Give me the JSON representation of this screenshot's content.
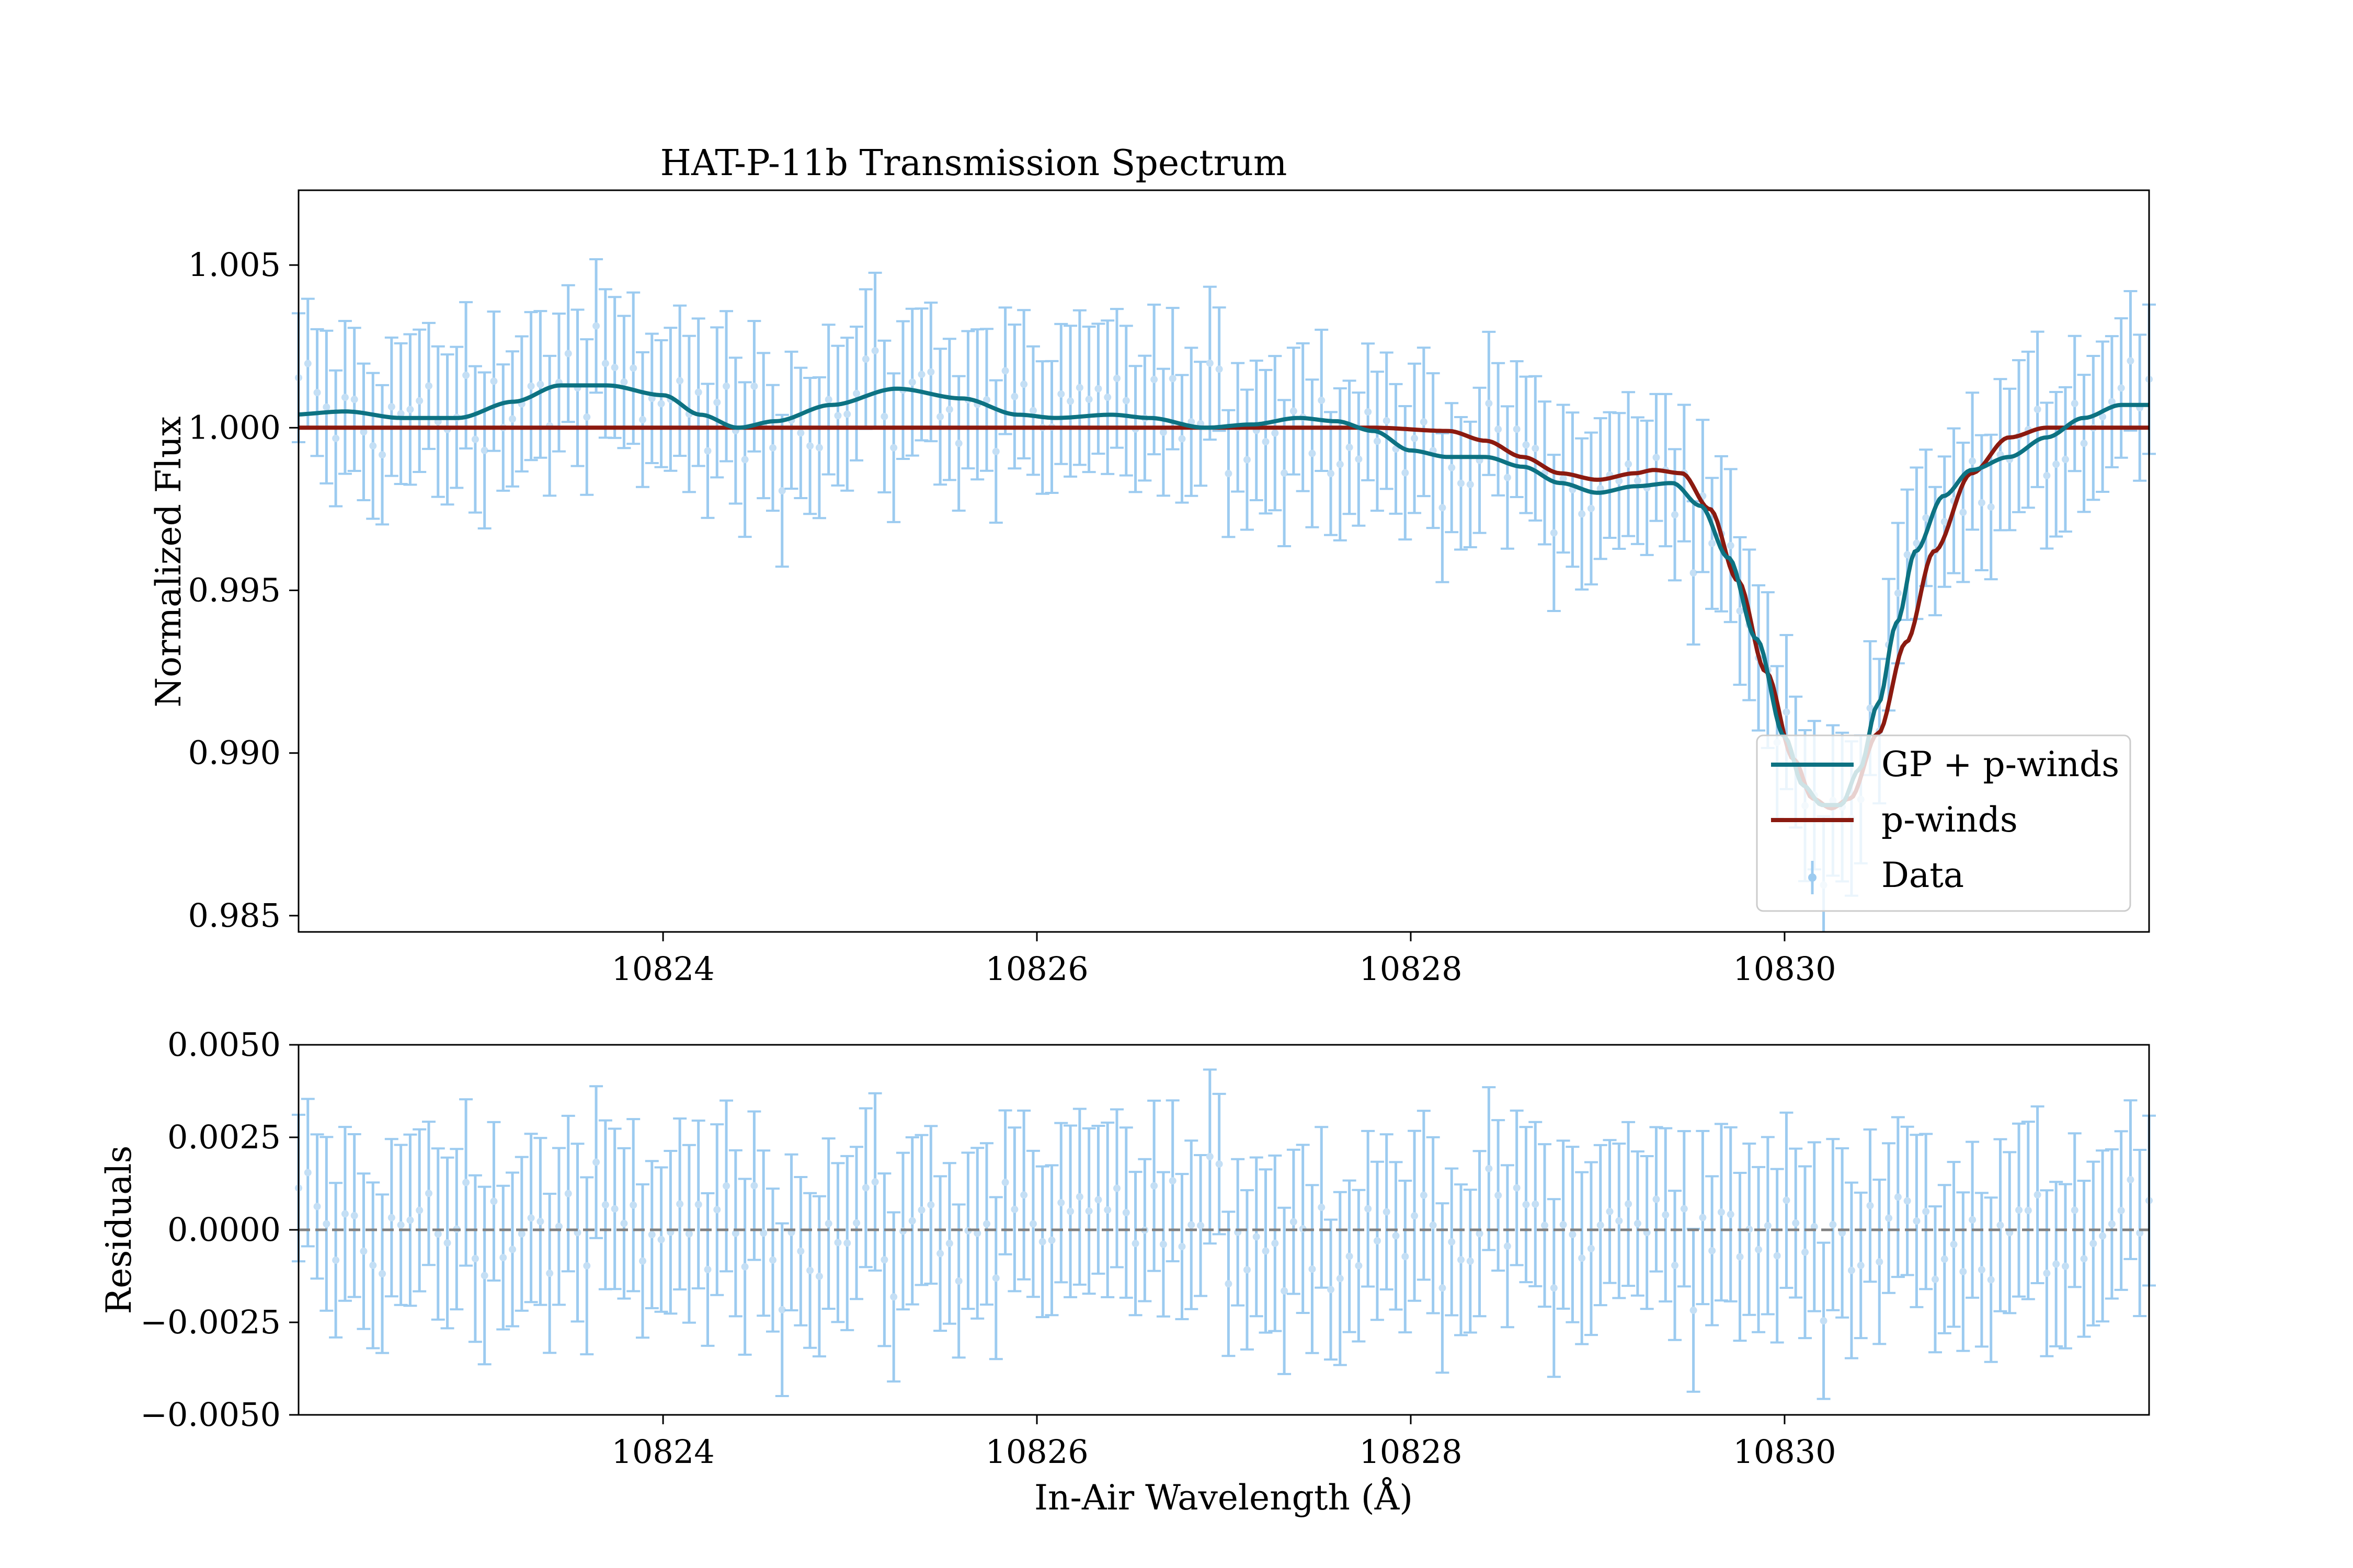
{
  "chart_data": [
    {
      "type": "line",
      "title": "HAT-P-11b Transmission Spectrum",
      "xlabel": "",
      "ylabel": "Normalized Flux",
      "xlim": [
        10822.05,
        10831.95
      ],
      "ylim": [
        0.9845,
        1.0073
      ],
      "x_ticks": [
        10824,
        10826,
        10828,
        10830
      ],
      "x_tick_labels": [
        "10824",
        "10826",
        "10828",
        "10830"
      ],
      "y_ticks": [
        0.985,
        0.99,
        0.995,
        1.0,
        1.005
      ],
      "y_tick_labels": [
        "0.985",
        "0.990",
        "0.995",
        "1.000",
        "1.005"
      ],
      "legend": {
        "position": "lower-right",
        "entries": [
          "GP + p-winds",
          "p-winds",
          "Data"
        ]
      },
      "colors": {
        "gp": "#0d7282",
        "pwinds": "#8b1a10",
        "data": "#9ccbf0"
      },
      "series": [
        {
          "name": "GP + p-winds",
          "x": [
            10822.0,
            10822.3,
            10822.6,
            10822.9,
            10823.2,
            10823.45,
            10823.7,
            10824.0,
            10824.2,
            10824.4,
            10824.6,
            10824.9,
            10825.25,
            10825.6,
            10825.9,
            10826.1,
            10826.4,
            10826.6,
            10826.9,
            10827.15,
            10827.4,
            10827.6,
            10827.8,
            10828.0,
            10828.2,
            10828.4,
            10828.6,
            10828.8,
            10829.0,
            10829.2,
            10829.4,
            10829.55,
            10829.7,
            10829.85,
            10830.0,
            10830.1,
            10830.2,
            10830.3,
            10830.4,
            10830.5,
            10830.6,
            10830.7,
            10830.85,
            10831.0,
            10831.2,
            10831.4,
            10831.6,
            10831.8,
            10831.95
          ],
          "y": [
            1.0004,
            1.0005,
            1.0003,
            1.0003,
            1.0008,
            1.0013,
            1.0013,
            1.001,
            1.0004,
            1.0,
            1.0002,
            1.0007,
            1.0012,
            1.0009,
            1.0004,
            1.0003,
            1.0004,
            1.0003,
            1.0,
            1.0001,
            1.0003,
            1.0002,
            0.9999,
            0.9993,
            0.9991,
            0.9991,
            0.9988,
            0.9983,
            0.998,
            0.9982,
            0.9983,
            0.9976,
            0.996,
            0.9935,
            0.9905,
            0.989,
            0.9884,
            0.9884,
            0.9895,
            0.9915,
            0.994,
            0.9962,
            0.9979,
            0.9987,
            0.9991,
            0.9997,
            1.0003,
            1.0007,
            1.0007
          ]
        },
        {
          "name": "p-winds",
          "x": [
            10822.0,
            10827.0,
            10827.8,
            10828.2,
            10828.4,
            10828.6,
            10828.8,
            10829.0,
            10829.2,
            10829.3,
            10829.45,
            10829.6,
            10829.75,
            10829.9,
            10830.05,
            10830.15,
            10830.25,
            10830.35,
            10830.5,
            10830.65,
            10830.8,
            10831.0,
            10831.2,
            10831.4,
            10831.95
          ],
          "y": [
            1.0,
            1.0,
            1.0,
            0.9999,
            0.9996,
            0.9991,
            0.9986,
            0.9984,
            0.9986,
            0.9987,
            0.9986,
            0.9975,
            0.9953,
            0.9925,
            0.9898,
            0.9886,
            0.9883,
            0.9886,
            0.9906,
            0.9934,
            0.9962,
            0.9986,
            0.9997,
            1.0,
            1.0
          ]
        }
      ],
      "data_points": {
        "name": "Data",
        "x_start": 10822.05,
        "x_end": 10831.95,
        "count": 200,
        "sigma": 0.0021
      }
    },
    {
      "type": "scatter",
      "title": "",
      "xlabel": "In-Air Wavelength (Å)",
      "ylabel": "Residuals",
      "xlim": [
        10822.05,
        10831.95
      ],
      "ylim": [
        -0.005,
        0.005
      ],
      "x_ticks": [
        10824,
        10826,
        10828,
        10830
      ],
      "x_tick_labels": [
        "10824",
        "10826",
        "10828",
        "10830"
      ],
      "y_ticks": [
        -0.005,
        -0.0025,
        0.0,
        0.0025,
        0.005
      ],
      "y_tick_labels": [
        "−0.0050",
        "−0.0025",
        "0.0000",
        "0.0025",
        "0.0050"
      ],
      "reference_line": {
        "y": 0.0,
        "style": "dashed",
        "color": "#808080"
      },
      "residual_sigma": 0.0021
    }
  ]
}
